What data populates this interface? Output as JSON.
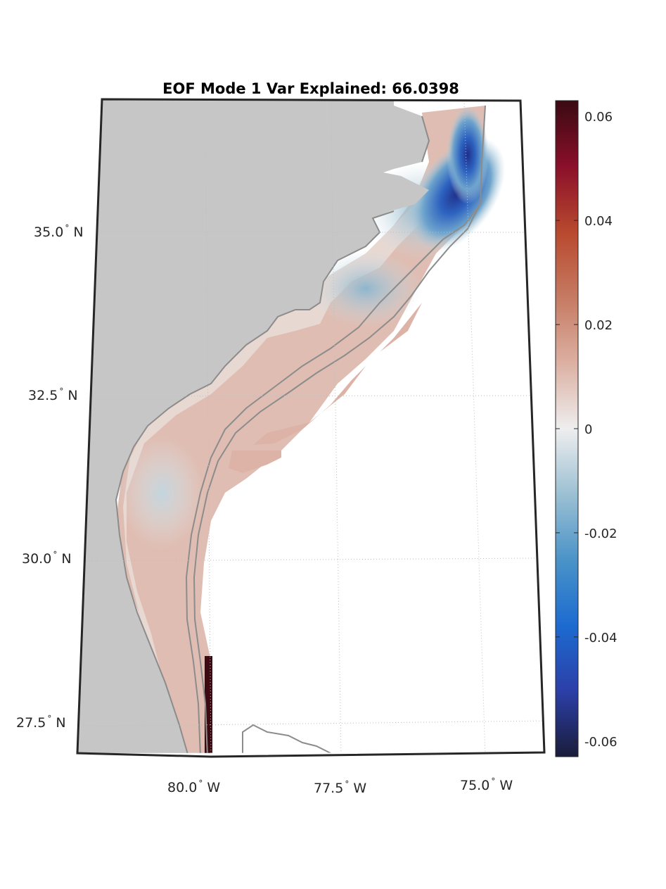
{
  "title": "EOF Mode 1 Var Explained: 66.0398",
  "map": {
    "projection": "conic",
    "lat_labels": [
      {
        "text": "35.0",
        "suffix": "N"
      },
      {
        "text": "32.5",
        "suffix": "N"
      },
      {
        "text": "30.0",
        "suffix": "N"
      },
      {
        "text": "27.5",
        "suffix": "N"
      }
    ],
    "lon_labels": [
      {
        "text": "80.0",
        "suffix": "W"
      },
      {
        "text": "77.5",
        "suffix": "W"
      },
      {
        "text": "75.0",
        "suffix": "W"
      }
    ],
    "degree_symbol": "°",
    "land_color": "#c6c6c6",
    "ocean_color": "#ffffff",
    "coastline_color": "#8c8c8c",
    "grid_style": "dotted"
  },
  "colorbar": {
    "colormap": "balance",
    "clim": [
      -0.063,
      0.063
    ],
    "colors": [
      "#1a1c3a",
      "#2c3fa8",
      "#1c6bd0",
      "#4a93c8",
      "#9cc0d3",
      "#eeeeee",
      "#dcb0a2",
      "#c67a62",
      "#b8492e",
      "#8a0f2a",
      "#3a0a12"
    ],
    "ticks": [
      {
        "value": 0.06,
        "label": "0.06"
      },
      {
        "value": 0.04,
        "label": "0.04"
      },
      {
        "value": 0.02,
        "label": "0.02"
      },
      {
        "value": 0,
        "label": "0"
      },
      {
        "value": -0.02,
        "label": "-0.02"
      },
      {
        "value": -0.04,
        "label": "-0.04"
      },
      {
        "value": -0.06,
        "label": "-0.06"
      }
    ]
  }
}
